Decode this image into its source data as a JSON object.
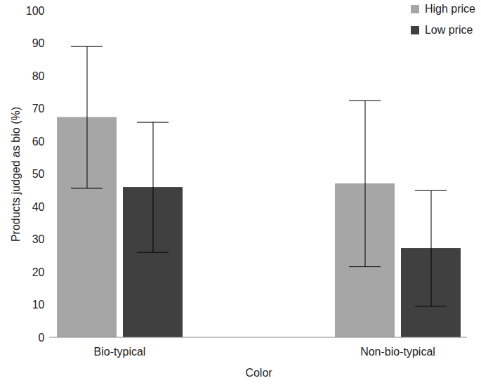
{
  "chart_data": {
    "type": "bar",
    "categories": [
      "Bio-typical",
      "Non-bio-typical"
    ],
    "x_label": "Color",
    "y_label": "Products judged as bio (%)",
    "series": [
      {
        "name": "High price",
        "color": "#a6a6a6",
        "values": [
          67.4,
          47.1
        ],
        "errors": [
          21.7,
          25.4
        ]
      },
      {
        "name": "Low price",
        "color": "#404040",
        "values": [
          46.0,
          27.3
        ],
        "errors": [
          19.9,
          17.7
        ]
      }
    ],
    "ylim": [
      0,
      100
    ],
    "yticks": [
      0,
      10,
      20,
      30,
      40,
      50,
      60,
      70,
      80,
      90,
      100
    ],
    "grid": false,
    "legend": "top-right"
  }
}
